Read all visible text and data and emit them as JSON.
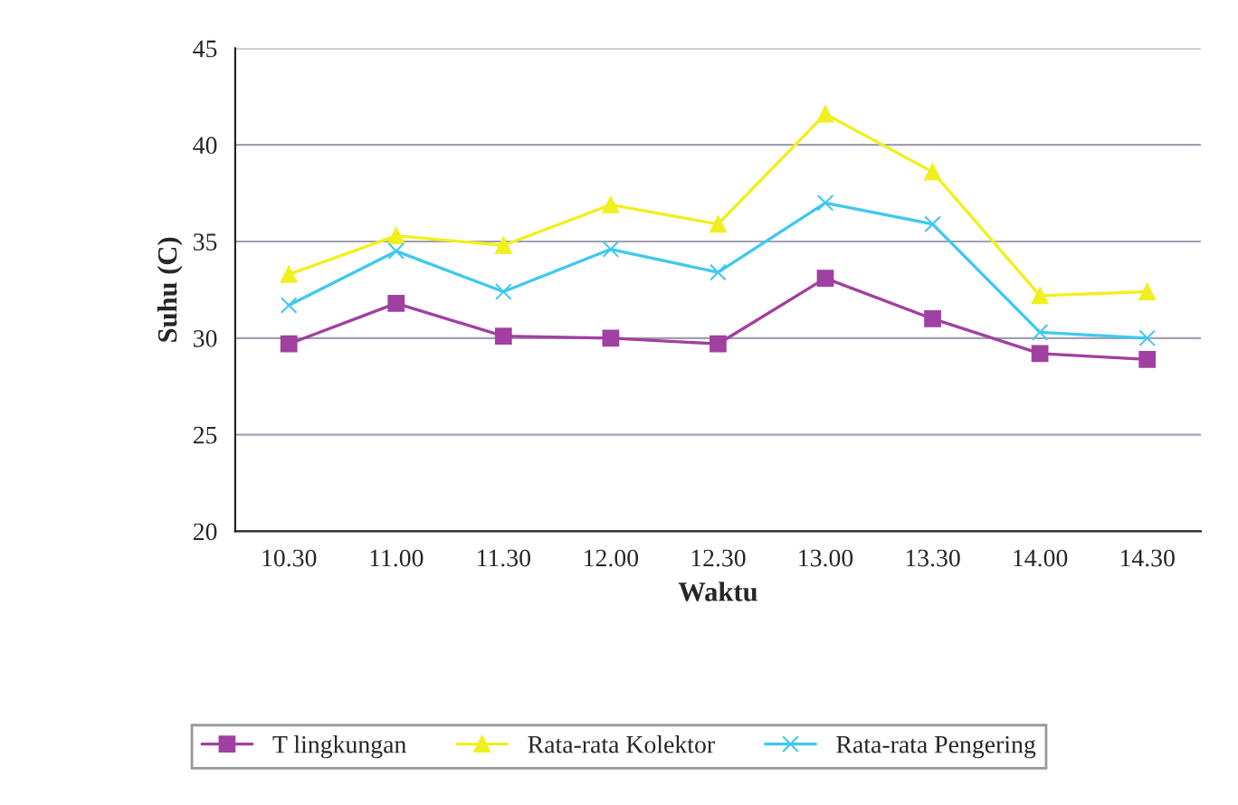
{
  "chart_data": {
    "type": "line",
    "xlabel": "Waktu",
    "ylabel": "Suhu (C)",
    "categories": [
      "10.30",
      "11.00",
      "11.30",
      "12.00",
      "12.30",
      "13.00",
      "13.30",
      "14.00",
      "14.30"
    ],
    "series": [
      {
        "name": "T lingkungan",
        "color": "#a040a0",
        "marker": "square",
        "values": [
          29.7,
          31.8,
          30.1,
          30.0,
          29.7,
          33.1,
          31.0,
          29.2,
          28.9
        ]
      },
      {
        "name": "Rata-rata Kolektor",
        "color": "#f0f020",
        "marker": "triangle",
        "values": [
          33.3,
          35.3,
          34.8,
          36.9,
          35.9,
          41.6,
          38.6,
          32.2,
          32.4
        ]
      },
      {
        "name": "Rata-rata Pengering",
        "color": "#40c8f0",
        "marker": "cross",
        "values": [
          31.7,
          34.5,
          32.4,
          34.6,
          33.4,
          37.0,
          35.9,
          30.3,
          30.0
        ]
      }
    ],
    "ylim": [
      20,
      45
    ],
    "yticks": [
      20,
      25,
      30,
      35,
      40,
      45
    ],
    "grid": "y",
    "legend": "bottom"
  }
}
